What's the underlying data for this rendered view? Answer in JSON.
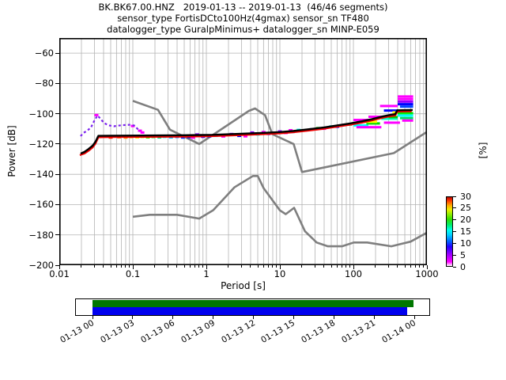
{
  "title": {
    "line1": "BK.BK67.00.HNZ   2019-01-13 -- 2019-01-13  (46/46 segments)",
    "line2": "sensor_type FortisDCto100Hz(4gmax) sensor_sn TF480",
    "line3": "datalogger_type GuralpMinimus+ datalogger_sn MINP-E059"
  },
  "axes": {
    "ylabel": "Power [dB]",
    "xlabel": "Period [s]",
    "pct_label": "[%]",
    "x_ticks": {
      "values": [
        0.01,
        0.1,
        1,
        10,
        100,
        1000
      ],
      "labels": [
        "0.01",
        "0.1",
        "1",
        "10",
        "100",
        "1000"
      ]
    },
    "y_ticks": {
      "values": [
        -60,
        -80,
        -100,
        -120,
        -140,
        -160,
        -180,
        -200
      ],
      "labels": [
        "−60",
        "−80",
        "−100",
        "−120",
        "−140",
        "−160",
        "−180",
        "−200"
      ]
    },
    "xlim_log10": [
      -2,
      3
    ],
    "ylim_db": [
      -200,
      -50
    ],
    "grid_color": "#b3b3b3"
  },
  "colorbar": {
    "tick_values": [
      0,
      5,
      10,
      15,
      20,
      25,
      30
    ],
    "tick_labels": [
      "0",
      "5",
      "10",
      "15",
      "20",
      "25",
      "30"
    ],
    "gradient_bottom_to_top": [
      [
        0.0,
        "#ffffff"
      ],
      [
        0.06,
        "#ff00ff"
      ],
      [
        0.17,
        "#9900ff"
      ],
      [
        0.28,
        "#2200ff"
      ],
      [
        0.36,
        "#0066ff"
      ],
      [
        0.45,
        "#00ccff"
      ],
      [
        0.52,
        "#00ffee"
      ],
      [
        0.6,
        "#00ee66"
      ],
      [
        0.68,
        "#33dd00"
      ],
      [
        0.76,
        "#99ee00"
      ],
      [
        0.82,
        "#eeee00"
      ],
      [
        0.88,
        "#ffaa00"
      ],
      [
        0.94,
        "#ff4400"
      ],
      [
        0.98,
        "#dd1100"
      ],
      [
        1.0,
        "#881100"
      ]
    ]
  },
  "chart_data": {
    "type": "line",
    "xlabel": "Period [s]",
    "ylabel": "Power [dB]",
    "x_range_s": [
      0.01,
      1000
    ],
    "y_range_db": [
      -200,
      -50
    ],
    "series": [
      {
        "name": "noise-model-low-nlnm",
        "color": "#7f7f7f",
        "width": 2.6,
        "dash": "",
        "layer": 1,
        "points": [
          [
            0.1,
            -168.0
          ],
          [
            0.17,
            -166.7
          ],
          [
            0.4,
            -166.7
          ],
          [
            0.8,
            -169.2
          ],
          [
            1.24,
            -163.7
          ],
          [
            2.4,
            -148.6
          ],
          [
            4.3,
            -141.1
          ],
          [
            5.0,
            -141.1
          ],
          [
            6.0,
            -149.1
          ],
          [
            10.0,
            -163.8
          ],
          [
            12.0,
            -166.3
          ],
          [
            15.6,
            -162.1
          ],
          [
            21.9,
            -177.6
          ],
          [
            31.6,
            -185.0
          ],
          [
            45.0,
            -187.5
          ],
          [
            70.0,
            -187.5
          ],
          [
            101.0,
            -185.0
          ],
          [
            154.0,
            -185.0
          ],
          [
            328.0,
            -187.5
          ],
          [
            600.0,
            -184.4
          ],
          [
            1000.0,
            -178.5
          ]
        ]
      },
      {
        "name": "noise-model-high-nhnm",
        "color": "#7f7f7f",
        "width": 2.6,
        "dash": "",
        "layer": 1,
        "points": [
          [
            0.1,
            -91.5
          ],
          [
            0.22,
            -97.4
          ],
          [
            0.32,
            -110.5
          ],
          [
            0.8,
            -120.0
          ],
          [
            3.8,
            -98.1
          ],
          [
            4.6,
            -96.5
          ],
          [
            6.3,
            -101.0
          ],
          [
            7.9,
            -113.5
          ],
          [
            15.4,
            -120.0
          ],
          [
            20.0,
            -138.5
          ],
          [
            354.8,
            -126.0
          ],
          [
            1000.0,
            -112.0
          ]
        ]
      },
      {
        "name": "psd-secondary-mode-dashed",
        "color": "#7a22ee",
        "width": 2.2,
        "dash": "3,3",
        "layer": 3,
        "points": [
          [
            0.0195,
            -114.8
          ],
          [
            0.021,
            -112.8
          ],
          [
            0.024,
            -111.2
          ],
          [
            0.027,
            -109.0
          ],
          [
            0.03,
            -104.5
          ],
          [
            0.033,
            -101.2
          ],
          [
            0.036,
            -103.0
          ],
          [
            0.04,
            -105.8
          ],
          [
            0.046,
            -107.6
          ],
          [
            0.055,
            -108.3
          ],
          [
            0.07,
            -107.6
          ],
          [
            0.09,
            -107.3
          ],
          [
            0.105,
            -107.8
          ],
          [
            0.115,
            -109.8
          ],
          [
            0.125,
            -111.5
          ]
        ]
      },
      {
        "name": "psd-percentile-red",
        "color": "#ee0000",
        "width": 2.2,
        "dash": "",
        "layer": 3,
        "points": [
          [
            0.019,
            -127.3
          ],
          [
            0.022,
            -126.3
          ],
          [
            0.025,
            -124.5
          ],
          [
            0.0285,
            -122.2
          ],
          [
            0.031,
            -119.8
          ],
          [
            0.034,
            -115.6
          ],
          [
            0.05,
            -115.4
          ],
          [
            0.5,
            -115.1
          ],
          [
            1.2,
            -114.8
          ],
          [
            3,
            -114.1
          ],
          [
            6,
            -113.5
          ],
          [
            10,
            -113.0
          ],
          [
            15,
            -112.3
          ],
          [
            25,
            -111.1
          ],
          [
            40,
            -109.9
          ],
          [
            60,
            -108.6
          ],
          [
            90,
            -107.3
          ],
          [
            130,
            -105.9
          ],
          [
            180,
            -104.4
          ],
          [
            250,
            -102.7
          ],
          [
            330,
            -101.5
          ],
          [
            370,
            -101.2
          ],
          [
            395,
            -98.6
          ],
          [
            620,
            -98.4
          ]
        ]
      },
      {
        "name": "psd-mode-black",
        "color": "#000000",
        "width": 2.4,
        "dash": "",
        "layer": 3,
        "points": [
          [
            0.0195,
            -126.3
          ],
          [
            0.022,
            -125.2
          ],
          [
            0.025,
            -123.3
          ],
          [
            0.0285,
            -121.0
          ],
          [
            0.031,
            -118.5
          ],
          [
            0.034,
            -114.6
          ],
          [
            0.05,
            -114.5
          ],
          [
            0.5,
            -114.2
          ],
          [
            1.2,
            -113.9
          ],
          [
            3,
            -113.2
          ],
          [
            6,
            -112.6
          ],
          [
            10,
            -112.1
          ],
          [
            15,
            -111.4
          ],
          [
            25,
            -110.2
          ],
          [
            40,
            -109.0
          ],
          [
            60,
            -107.7
          ],
          [
            90,
            -106.4
          ],
          [
            130,
            -105.0
          ],
          [
            180,
            -103.5
          ],
          [
            250,
            -101.8
          ],
          [
            330,
            -100.6
          ],
          [
            370,
            -100.3
          ],
          [
            395,
            -97.7
          ],
          [
            640,
            -97.5
          ]
        ]
      }
    ],
    "bands": [
      [
        100,
        160,
        -104.1,
        "#ff00ff"
      ],
      [
        160,
        250,
        -102.0,
        "#ff00ff"
      ],
      [
        230,
        400,
        -94.9,
        "#ff00ff"
      ],
      [
        260,
        400,
        -97.9,
        "#0000ff"
      ],
      [
        240,
        400,
        -103.3,
        "#00ffcc"
      ],
      [
        260,
        430,
        -105.9,
        "#ff00ff"
      ],
      [
        100,
        160,
        -107.7,
        "#00ffff"
      ],
      [
        150,
        230,
        -106.4,
        "#00dd00"
      ],
      [
        140,
        210,
        -105.3,
        "#ffff00"
      ],
      [
        340,
        420,
        -99.1,
        "#ffff00"
      ],
      [
        110,
        240,
        -108.9,
        "#ff00ff"
      ],
      [
        300,
        400,
        -102.2,
        "#00cc00"
      ],
      [
        400,
        650,
        -88.6,
        "#ff00ff"
      ],
      [
        400,
        650,
        -90.3,
        "#ff00ff"
      ],
      [
        400,
        650,
        -92.0,
        "#9900ff"
      ],
      [
        400,
        650,
        -93.7,
        "#0000ff"
      ],
      [
        430,
        650,
        -95.3,
        "#0044ff"
      ],
      [
        400,
        650,
        -99.6,
        "#00ee00"
      ],
      [
        400,
        650,
        -101.2,
        "#00ffff"
      ],
      [
        430,
        650,
        -102.9,
        "#00dd66"
      ],
      [
        460,
        650,
        -104.5,
        "#ff00ff"
      ]
    ],
    "marks": [
      [
        0.05,
        -115.7,
        "#ff2200"
      ],
      [
        0.065,
        -115.5,
        "#ff6600"
      ],
      [
        0.08,
        -115.7,
        "#ff8800"
      ],
      [
        0.095,
        -115.4,
        "#ffaa00"
      ],
      [
        0.115,
        -115.6,
        "#ffee00"
      ],
      [
        0.135,
        -115.3,
        "#bbee00"
      ],
      [
        0.16,
        -115.6,
        "#55dd00"
      ],
      [
        0.19,
        -115.3,
        "#00cc00"
      ],
      [
        0.23,
        -115.6,
        "#00dd88"
      ],
      [
        0.27,
        -115.3,
        "#00eeee"
      ],
      [
        0.33,
        -115.6,
        "#00bbff"
      ],
      [
        0.4,
        -115.3,
        "#0077ff"
      ],
      [
        0.48,
        -115.7,
        "#0033ff"
      ],
      [
        0.58,
        -115.4,
        "#0000ee"
      ],
      [
        0.66,
        -115.8,
        "#ff00ff"
      ],
      [
        0.75,
        -113.7,
        "#8800ff"
      ],
      [
        0.9,
        -115.2,
        "#4400ff"
      ],
      [
        1.1,
        -114.9,
        "#0000ff"
      ],
      [
        1.35,
        -114.6,
        "#00ffff"
      ],
      [
        1.7,
        -115.0,
        "#ff00ff"
      ],
      [
        2.2,
        -113.4,
        "#8800ff"
      ],
      [
        2.8,
        -114.6,
        "#0000ff"
      ],
      [
        3.4,
        -114.9,
        "#ff00ff"
      ],
      [
        4.2,
        -112.4,
        "#8800ff"
      ],
      [
        5.0,
        -113.7,
        "#00ffff"
      ],
      [
        6.0,
        -112.1,
        "#ff00ff"
      ],
      [
        7.0,
        -113.3,
        "#0000ff"
      ],
      [
        8.5,
        -112.7,
        "#00ffff"
      ],
      [
        10,
        -111.7,
        "#8800ff"
      ],
      [
        12,
        -112.7,
        "#ff00ff"
      ],
      [
        14,
        -110.9,
        "#ff00ff"
      ],
      [
        15,
        -112.0,
        "#0000ff"
      ],
      [
        18,
        -110.7,
        "#00ffff"
      ],
      [
        22,
        -111.0,
        "#ff00ff"
      ],
      [
        27,
        -110.3,
        "#0000ff"
      ],
      [
        33,
        -109.5,
        "#00dd00"
      ],
      [
        40,
        -109.9,
        "#ff00ff"
      ],
      [
        50,
        -108.4,
        "#00ffff"
      ],
      [
        60,
        -108.6,
        "#0000ff"
      ],
      [
        75,
        -107.3,
        "#ff00ff"
      ],
      [
        90,
        -107.1,
        "#00dd00"
      ],
      [
        0.032,
        -100.9,
        "#ff00ff"
      ],
      [
        0.1,
        -108.1,
        "#ff00ff"
      ],
      [
        0.125,
        -111.2,
        "#ff00ff"
      ],
      [
        0.135,
        -112.4,
        "#ff00ff"
      ]
    ]
  },
  "timeline": {
    "tick_labels": [
      "01-13 00",
      "01-13 03",
      "01-13 06",
      "01-13 09",
      "01-13 12",
      "01-13 15",
      "01-13 18",
      "01-13 21",
      "01-14 00"
    ],
    "bars": [
      {
        "name": "coverage-top",
        "color": "#007700",
        "start_frac": 0.0,
        "end_frac": 0.998
      },
      {
        "name": "coverage-bottom",
        "color": "#0000ee",
        "start_frac": 0.0,
        "end_frac": 0.978
      }
    ]
  }
}
